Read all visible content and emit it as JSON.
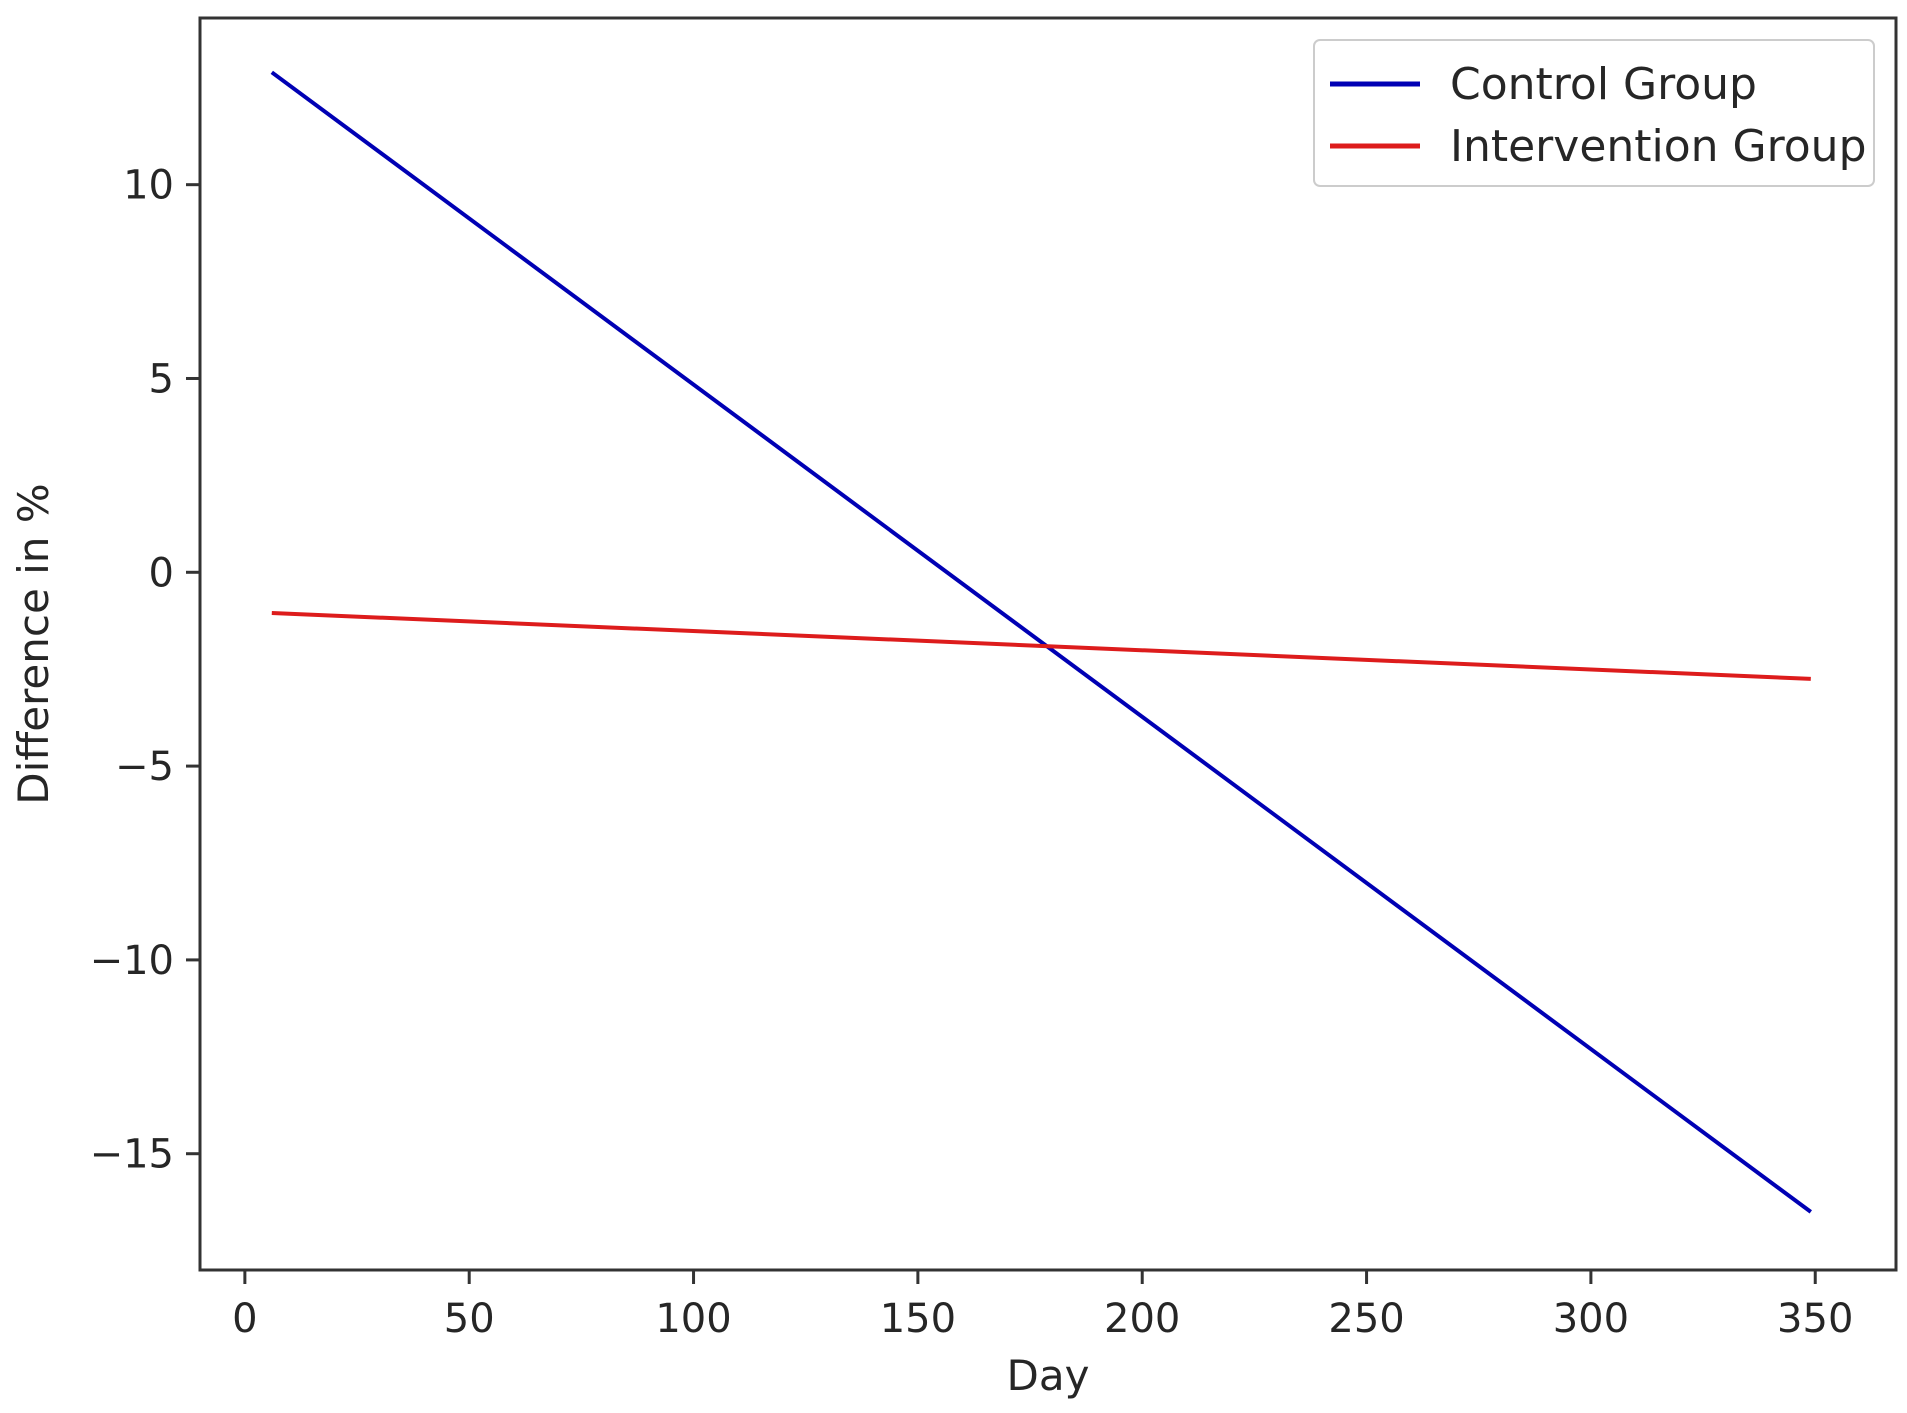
{
  "chart_data": {
    "type": "line",
    "title": "",
    "xlabel": "Day",
    "ylabel": "Difference in %",
    "xlim": [
      -10,
      368
    ],
    "ylim": [
      -18.0,
      14.3
    ],
    "x_ticks": [
      0,
      50,
      100,
      150,
      200,
      250,
      300,
      350
    ],
    "x_tick_labels": [
      "0",
      "50",
      "100",
      "150",
      "200",
      "250",
      "300",
      "350"
    ],
    "y_ticks": [
      -15,
      -10,
      -5,
      0,
      5,
      10
    ],
    "y_tick_labels": [
      "−15",
      "−10",
      "−5",
      "0",
      "5",
      "10"
    ],
    "grid": false,
    "legend_position": "top-right",
    "series": [
      {
        "name": "Control Group",
        "color": "#0000b4",
        "x": [
          6,
          349
        ],
        "y": [
          12.9,
          -16.5
        ]
      },
      {
        "name": "Intervention Group",
        "color": "#dd1c1c",
        "x": [
          6,
          349
        ],
        "y": [
          -1.05,
          -2.75
        ]
      }
    ]
  }
}
